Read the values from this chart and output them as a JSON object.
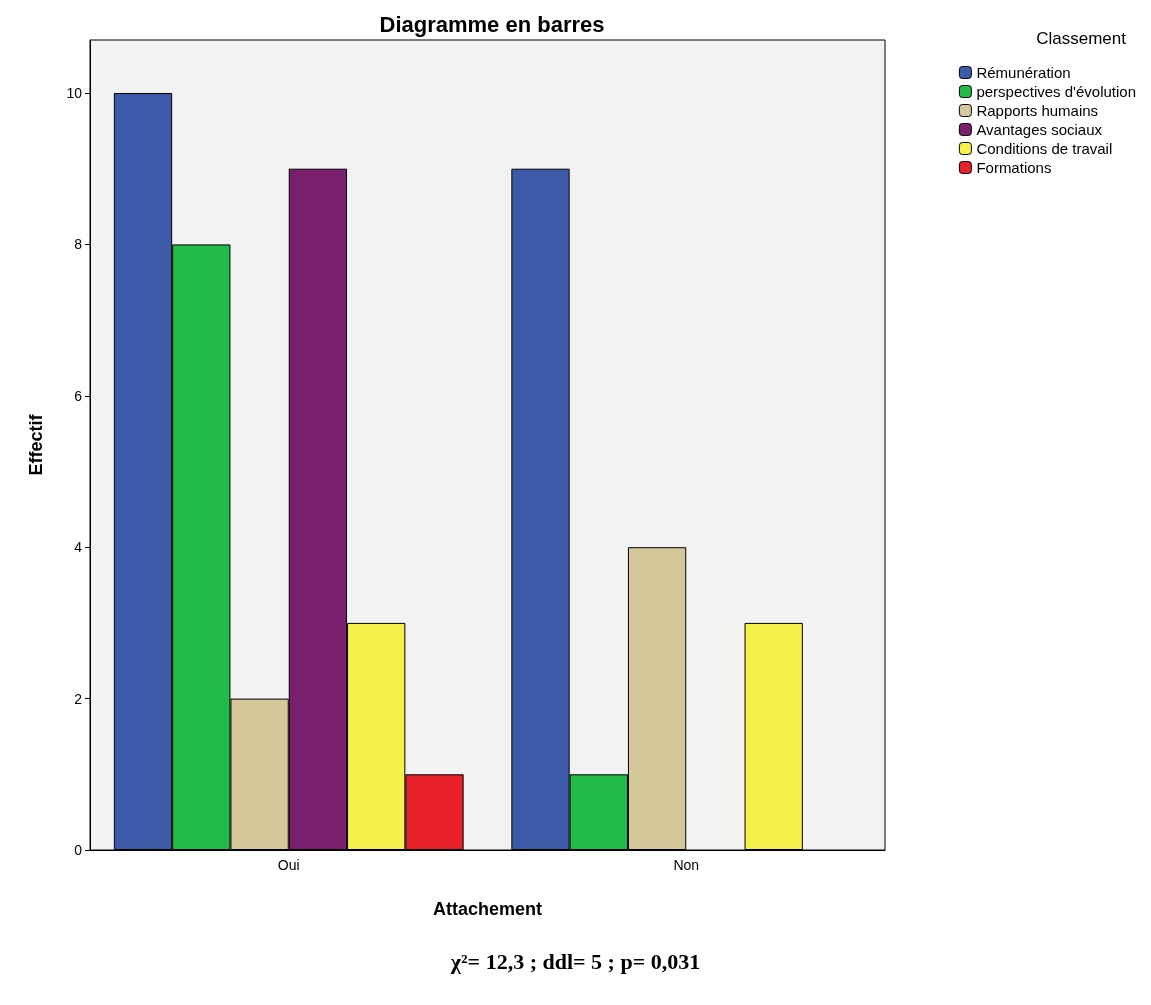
{
  "chart_data": {
    "type": "bar",
    "title": "Diagramme en barres",
    "xlabel": "Attachement",
    "ylabel": "Effectif",
    "legend_title": "Classement",
    "categories": [
      "Oui",
      "Non"
    ],
    "series": [
      {
        "name": "Rémunération",
        "color": "#3c5aa8",
        "values": [
          10,
          9
        ]
      },
      {
        "name": "perspectives d'évolution",
        "color": "#22bb48",
        "values": [
          8,
          1
        ]
      },
      {
        "name": "Rapports humains",
        "color": "#d4c89a",
        "values": [
          2,
          4
        ]
      },
      {
        "name": "Avantages sociaux",
        "color": "#7a1f6e",
        "values": [
          9,
          null
        ]
      },
      {
        "name": "Conditions de travail",
        "color": "#f5f04a",
        "values": [
          3,
          3
        ]
      },
      {
        "name": "Formations",
        "color": "#e8202a",
        "values": [
          1,
          null
        ]
      }
    ],
    "ylim": [
      0,
      10.7
    ],
    "yticks": [
      0,
      2,
      4,
      6,
      8,
      10
    ],
    "grid": false,
    "legend": "top right",
    "annotations": [
      "χ²= 12,3 ; ddl= 5 ; p= 0,031"
    ]
  }
}
